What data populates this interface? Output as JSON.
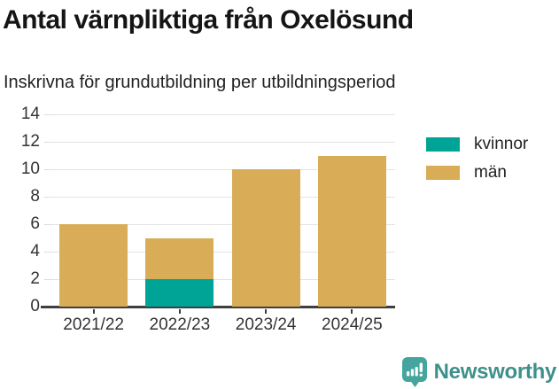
{
  "header": {
    "title": "Antal värnpliktiga från Oxelösund",
    "subtitle": "Inskrivna för grundutbildning per utbildningsperiod"
  },
  "chart_data": {
    "type": "bar",
    "stacked": true,
    "title": "Antal värnpliktiga från Oxelösund",
    "subtitle": "Inskrivna för grundutbildning per utbildningsperiod",
    "categories": [
      "2021/22",
      "2022/23",
      "2023/24",
      "2024/25"
    ],
    "series": [
      {
        "name": "kvinnor",
        "color": "#00a496",
        "values": [
          0,
          2,
          0,
          0
        ]
      },
      {
        "name": "män",
        "color": "#d9ad57",
        "values": [
          6,
          3,
          10,
          11
        ]
      }
    ],
    "totals": [
      6,
      5,
      10,
      11
    ],
    "xlabel": "",
    "ylabel": "",
    "ylim": [
      0,
      14
    ],
    "yticks": [
      0,
      2,
      4,
      6,
      8,
      10,
      12,
      14
    ],
    "grid": true,
    "legend_position": "right"
  },
  "footer": {
    "brand": "Newsworthy"
  },
  "colors": {
    "grid": "#e2e2e2",
    "axis": "#3f3f3f",
    "axis_text": "#333333",
    "brand_icon": "#45a59e",
    "brand_text": "#3f908b"
  }
}
